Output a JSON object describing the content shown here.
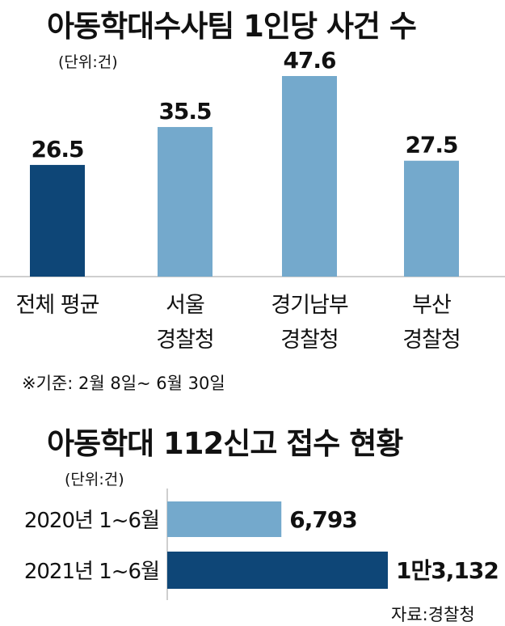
{
  "colors": {
    "dark": "#0e4677",
    "light": "#74a9cc",
    "axis": "#bfbfbf",
    "text": "#111111"
  },
  "chart1": {
    "title": "아동학대수사팀 1인당 사건 수",
    "unit": "(단위:건)",
    "note": "※기준:  2월 8일~ 6월 30일"
  },
  "chart2": {
    "title": "아동학대 112신고 접수 현황",
    "unit": "(단위:건)"
  },
  "source": "자료:경찰청",
  "chart_data": [
    {
      "type": "bar",
      "title": "아동학대수사팀 1인당 사건 수",
      "unit": "(단위:건)",
      "categories": [
        [
          "전체 평균"
        ],
        [
          "서울",
          "경찰청"
        ],
        [
          "경기남부",
          "경찰청"
        ],
        [
          "부산",
          "경찰청"
        ]
      ],
      "values": [
        26.5,
        35.5,
        47.6,
        27.5
      ],
      "value_labels": [
        "26.5",
        "35.5",
        "47.6",
        "27.5"
      ],
      "highlight_index": 0,
      "grid": false
    },
    {
      "type": "bar",
      "orientation": "horizontal",
      "title": "아동학대 112신고 접수 현황",
      "unit": "(단위:건)",
      "categories": [
        "2020년 1~6월",
        "2021년 1~6월"
      ],
      "values": [
        6793,
        13132
      ],
      "value_labels": [
        "6,793",
        "1만3,132"
      ],
      "highlight_index": 1,
      "grid": false
    }
  ]
}
